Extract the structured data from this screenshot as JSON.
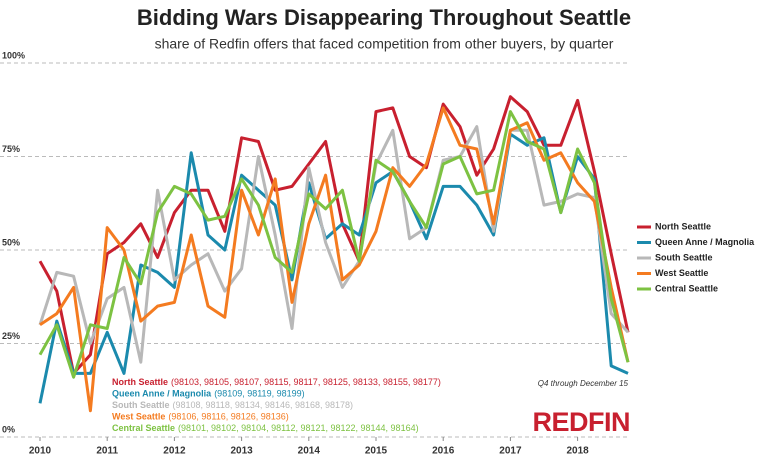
{
  "chart_data": {
    "type": "line",
    "title": "Bidding Wars Disappearing Throughout Seattle",
    "subtitle": "share of Redfin offers that faced competition from other buyers, by quarter",
    "annotation": "Q4 through December 15",
    "brand": "REDFIN",
    "x": [
      2010,
      2010.25,
      2010.5,
      2010.75,
      2011,
      2011.25,
      2011.5,
      2011.75,
      2012,
      2012.25,
      2012.5,
      2012.75,
      2013,
      2013.25,
      2013.5,
      2013.75,
      2014,
      2014.25,
      2014.5,
      2014.75,
      2015,
      2015.25,
      2015.5,
      2015.75,
      2016,
      2016.25,
      2016.5,
      2016.75,
      2017,
      2017.25,
      2017.5,
      2017.75,
      2018,
      2018.25,
      2018.5,
      2018.75
    ],
    "xlim": [
      2010,
      2018.75
    ],
    "xticks": [
      2010,
      2011,
      2012,
      2013,
      2014,
      2015,
      2016,
      2017,
      2018
    ],
    "ylim": [
      0,
      100
    ],
    "yticks": [
      {
        "value": 0,
        "label": "0%"
      },
      {
        "value": 25,
        "label": "25%"
      },
      {
        "value": 50,
        "label": "50%"
      },
      {
        "value": 75,
        "label": "75%"
      },
      {
        "value": 100,
        "label": "100%"
      }
    ],
    "grid": true,
    "legend": "right",
    "series": [
      {
        "name": "North Seattle",
        "color": "#c8202f",
        "zips": "(98103, 98105, 98107, 98115, 98117, 98125, 98133, 98155, 98177)",
        "values": [
          47,
          39,
          17,
          22,
          49,
          52,
          57,
          48,
          60,
          66,
          66,
          55,
          80,
          79,
          66,
          67,
          73,
          79,
          57,
          47,
          87,
          88,
          75,
          72,
          89,
          83,
          70,
          77,
          91,
          87,
          78,
          78,
          90,
          71,
          49,
          28
        ]
      },
      {
        "name": "Queen Anne / Magnolia",
        "color": "#1b8aad",
        "zips": "(98109, 98119, 98199)",
        "values": [
          9,
          31,
          17,
          17,
          28,
          17,
          46,
          44,
          40,
          76,
          54,
          50,
          70,
          66,
          62,
          42,
          68,
          53,
          57,
          54,
          68,
          71,
          63,
          53,
          67,
          67,
          62,
          54,
          81,
          78,
          80,
          60,
          75,
          69,
          19,
          17
        ]
      },
      {
        "name": "South Seattle",
        "color": "#b8b8b8",
        "zips": "(98108, 98118, 98134, 98146, 98168, 98178)",
        "values": [
          30,
          44,
          43,
          25,
          37,
          40,
          20,
          66,
          42,
          46,
          49,
          39,
          45,
          75,
          54,
          29,
          72,
          52,
          40,
          47,
          73,
          82,
          53,
          56,
          74,
          75,
          83,
          55,
          82,
          82,
          62,
          63,
          65,
          64,
          33,
          28
        ]
      },
      {
        "name": "West Seattle",
        "color": "#f47b20",
        "zips": "(98106, 98116, 98126, 98136)",
        "values": [
          30,
          33,
          40,
          7,
          56,
          50,
          31,
          35,
          36,
          54,
          35,
          32,
          66,
          54,
          69,
          36,
          57,
          70,
          42,
          46,
          55,
          72,
          67,
          73,
          88,
          78,
          77,
          57,
          82,
          84,
          74,
          76,
          68,
          63,
          40,
          20
        ]
      },
      {
        "name": "Central Seattle",
        "color": "#7dc242",
        "zips": "(98101, 98102, 98104, 98112, 98121, 98122, 98144, 98164)",
        "values": [
          22,
          30,
          16,
          30,
          29,
          48,
          41,
          60,
          67,
          65,
          58,
          59,
          69,
          62,
          48,
          44,
          65,
          61,
          66,
          47,
          74,
          71,
          63,
          56,
          73,
          75,
          65,
          66,
          87,
          79,
          77,
          60,
          77,
          68,
          37,
          20
        ]
      }
    ]
  }
}
